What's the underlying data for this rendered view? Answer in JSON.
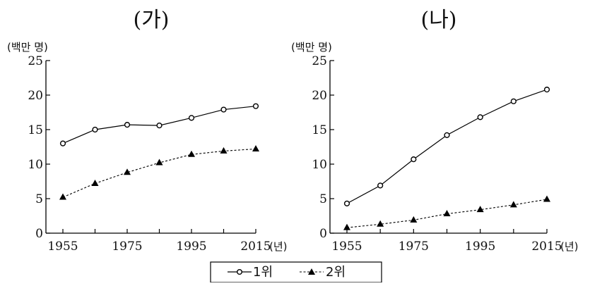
{
  "legend": [
    {
      "label": "1위",
      "marker": "circle",
      "line": "solid"
    },
    {
      "label": "2위",
      "marker": "triangle",
      "line": "dotted"
    }
  ],
  "chart_data": [
    {
      "type": "line",
      "title": "(가)",
      "ylabel": "(백만 명)",
      "xunit": "(년)",
      "ylim": [
        0,
        25
      ],
      "yticks": [
        0,
        5,
        10,
        15,
        20,
        25
      ],
      "xlim": [
        1955,
        2015
      ],
      "xticks": [
        1955,
        1975,
        1995,
        2015
      ],
      "x": [
        1955,
        1965,
        1975,
        1985,
        1995,
        2005,
        2015
      ],
      "series": [
        {
          "values": [
            13.0,
            15.0,
            15.7,
            15.6,
            16.7,
            17.9,
            18.4
          ]
        },
        {
          "values": [
            5.2,
            7.2,
            8.8,
            10.2,
            11.4,
            11.9,
            12.2
          ]
        }
      ],
      "grid": false
    },
    {
      "type": "line",
      "title": "(나)",
      "ylabel": "(백만 명)",
      "xunit": "(년)",
      "ylim": [
        0,
        25
      ],
      "yticks": [
        0,
        5,
        10,
        15,
        20,
        25
      ],
      "xlim": [
        1955,
        2015
      ],
      "xticks": [
        1955,
        1975,
        1995,
        2015
      ],
      "x": [
        1955,
        1965,
        1975,
        1985,
        1995,
        2005,
        2015
      ],
      "series": [
        {
          "values": [
            4.3,
            6.9,
            10.7,
            14.2,
            16.8,
            19.1,
            20.8
          ]
        },
        {
          "values": [
            0.8,
            1.3,
            1.9,
            2.8,
            3.4,
            4.1,
            4.9
          ]
        }
      ],
      "grid": false
    }
  ]
}
